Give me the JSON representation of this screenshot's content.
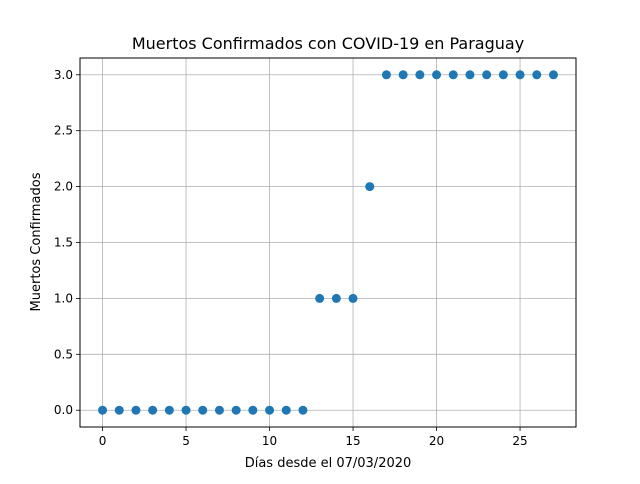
{
  "chart_data": {
    "type": "scatter",
    "title": "Muertos Confirmados con COVID-19 en Paraguay",
    "xlabel": "Días desde el 07/03/2020",
    "ylabel": "Muertos Confirmados",
    "xlim": [
      -1.35,
      28.35
    ],
    "ylim": [
      -0.15,
      3.15
    ],
    "xticks": [
      0,
      5,
      10,
      15,
      20,
      25
    ],
    "xtick_labels": [
      "0",
      "5",
      "10",
      "15",
      "20",
      "25"
    ],
    "yticks": [
      0.0,
      0.5,
      1.0,
      1.5,
      2.0,
      2.5,
      3.0
    ],
    "ytick_labels": [
      "0.0",
      "0.5",
      "1.0",
      "1.5",
      "2.0",
      "2.5",
      "3.0"
    ],
    "grid": true,
    "color": "#1f77b4",
    "x": [
      0,
      1,
      2,
      3,
      4,
      5,
      6,
      7,
      8,
      9,
      10,
      11,
      12,
      13,
      14,
      15,
      16,
      17,
      18,
      19,
      20,
      21,
      22,
      23,
      24,
      25,
      26,
      27
    ],
    "y": [
      0,
      0,
      0,
      0,
      0,
      0,
      0,
      0,
      0,
      0,
      0,
      0,
      0,
      1,
      1,
      1,
      2,
      3,
      3,
      3,
      3,
      3,
      3,
      3,
      3,
      3,
      3,
      3
    ]
  }
}
